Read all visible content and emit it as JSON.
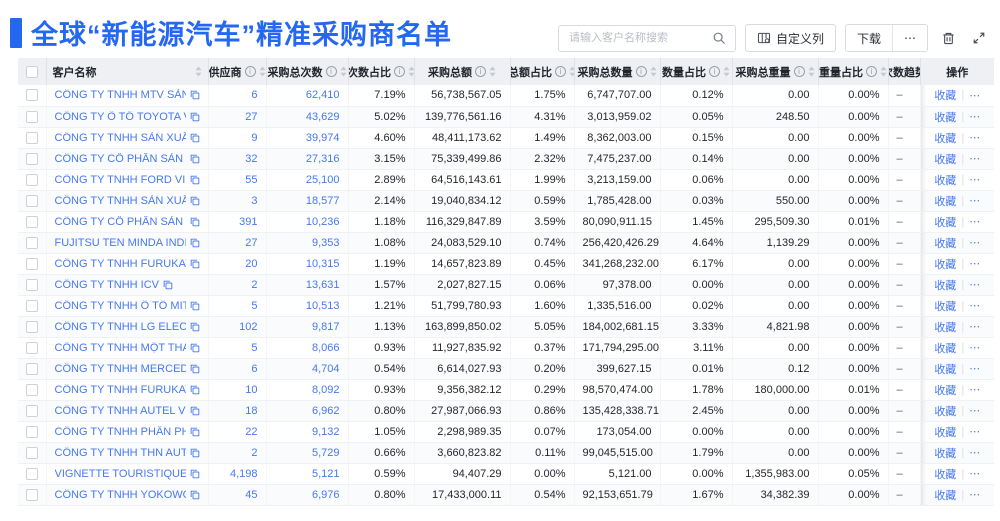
{
  "title": "全球“新能源汽车”精准采购商名单",
  "colors": {
    "accent": "#2468f2",
    "link": "#4678f2",
    "header_bg": "#eef0f4"
  },
  "icons": {
    "search": "magnifier",
    "customize": "column-settings",
    "more": "ellipsis",
    "trash": "trash-bin",
    "fullscreen": "expand-corners",
    "copy": "copy-squares",
    "sort": "sort-carets",
    "info": "info-circle"
  },
  "toolbar": {
    "search_placeholder": "请输入客户名称搜索",
    "customize_columns": "自定义列",
    "download": "下载",
    "more": "⋯"
  },
  "row_actions": {
    "favorite": "收藏",
    "separator": "|",
    "more": "⋯"
  },
  "table": {
    "columns": [
      {
        "key": "name",
        "label": "客户名称",
        "info": false,
        "sort": true,
        "align": "left"
      },
      {
        "key": "supplier",
        "label": "供应商",
        "info": true,
        "sort": true
      },
      {
        "key": "purchase_count",
        "label": "采购总次数",
        "info": true,
        "sort": true
      },
      {
        "key": "count_pct",
        "label": "次数占比",
        "info": true,
        "sort": true
      },
      {
        "key": "amount",
        "label": "采购总额",
        "info": true,
        "sort": true
      },
      {
        "key": "amount_pct",
        "label": "总额占比",
        "info": true,
        "sort": true
      },
      {
        "key": "quantity",
        "label": "采购总数量",
        "info": true,
        "sort": true
      },
      {
        "key": "quantity_pct",
        "label": "数量占比",
        "info": true,
        "sort": true
      },
      {
        "key": "weight",
        "label": "采购总重量",
        "info": true,
        "sort": true
      },
      {
        "key": "weight_pct",
        "label": "重量占比",
        "info": true,
        "sort": true
      },
      {
        "key": "trend",
        "label": "次数趋势",
        "info": false,
        "sort": false
      },
      {
        "key": "actions",
        "label": "操作",
        "info": false,
        "sort": false
      }
    ],
    "rows": [
      {
        "name": "CÔNG TY TNHH MTV SẢN XUẤ...",
        "supplier": "6",
        "purchase_count": "62,410",
        "count_pct": "7.19%",
        "amount": "56,738,567.05",
        "amount_pct": "1.75%",
        "quantity": "6,747,707.00",
        "quantity_pct": "0.12%",
        "weight": "0.00",
        "weight_pct": "0.00%",
        "trend": "–"
      },
      {
        "name": "CÔNG TY Ô TÔ TOYOTA VIỆT ...",
        "supplier": "27",
        "purchase_count": "43,629",
        "count_pct": "5.02%",
        "amount": "139,776,561.16",
        "amount_pct": "4.31%",
        "quantity": "3,013,959.02",
        "quantity_pct": "0.05%",
        "weight": "248.50",
        "weight_pct": "0.00%",
        "trend": "–"
      },
      {
        "name": "CÔNG TY TNHH SẢN XUẤT VÀ ...",
        "supplier": "9",
        "purchase_count": "39,974",
        "count_pct": "4.60%",
        "amount": "48,411,173.62",
        "amount_pct": "1.49%",
        "quantity": "8,362,003.00",
        "quantity_pct": "0.15%",
        "weight": "0.00",
        "weight_pct": "0.00%",
        "trend": "–"
      },
      {
        "name": "CÔNG TY CỔ PHẦN SẢN XUẤT...",
        "supplier": "32",
        "purchase_count": "27,316",
        "count_pct": "3.15%",
        "amount": "75,339,499.86",
        "amount_pct": "2.32%",
        "quantity": "7,475,237.00",
        "quantity_pct": "0.14%",
        "weight": "0.00",
        "weight_pct": "0.00%",
        "trend": "–"
      },
      {
        "name": "CÔNG TY TNHH FORD VIỆT NAM",
        "supplier": "55",
        "purchase_count": "25,100",
        "count_pct": "2.89%",
        "amount": "64,516,143.61",
        "amount_pct": "1.99%",
        "quantity": "3,213,159.00",
        "quantity_pct": "0.06%",
        "weight": "0.00",
        "weight_pct": "0.00%",
        "trend": "–"
      },
      {
        "name": "CÔNG TY TNHH SẢN XUẤT VÀ ...",
        "supplier": "3",
        "purchase_count": "18,577",
        "count_pct": "2.14%",
        "amount": "19,040,834.12",
        "amount_pct": "0.59%",
        "quantity": "1,785,428.00",
        "quantity_pct": "0.03%",
        "weight": "550.00",
        "weight_pct": "0.00%",
        "trend": "–"
      },
      {
        "name": "CÔNG TY CỔ PHẦN SẢN XUẤT...",
        "supplier": "391",
        "purchase_count": "10,236",
        "count_pct": "1.18%",
        "amount": "116,329,847.89",
        "amount_pct": "3.59%",
        "quantity": "80,090,911.15",
        "quantity_pct": "1.45%",
        "weight": "295,509.30",
        "weight_pct": "0.01%",
        "trend": "–"
      },
      {
        "name": "FUJITSU TEN MINDA INDIA PVT...",
        "supplier": "27",
        "purchase_count": "9,353",
        "count_pct": "1.08%",
        "amount": "24,083,529.10",
        "amount_pct": "0.74%",
        "quantity": "256,420,426.29",
        "quantity_pct": "4.64%",
        "weight": "1,139.29",
        "weight_pct": "0.00%",
        "trend": "–"
      },
      {
        "name": "CÔNG TY TNHH FURUKAWA A...",
        "supplier": "20",
        "purchase_count": "10,315",
        "count_pct": "1.19%",
        "amount": "14,657,823.89",
        "amount_pct": "0.45%",
        "quantity": "341,268,232.00",
        "quantity_pct": "6.17%",
        "weight": "0.00",
        "weight_pct": "0.00%",
        "trend": "–"
      },
      {
        "name": "CÔNG TY TNHH ICV",
        "supplier": "2",
        "purchase_count": "13,631",
        "count_pct": "1.57%",
        "amount": "2,027,827.15",
        "amount_pct": "0.06%",
        "quantity": "97,378.00",
        "quantity_pct": "0.00%",
        "weight": "0.00",
        "weight_pct": "0.00%",
        "trend": "–"
      },
      {
        "name": "CÔNG TY TNHH Ô TÔ MITSUBI...",
        "supplier": "5",
        "purchase_count": "10,513",
        "count_pct": "1.21%",
        "amount": "51,799,780.93",
        "amount_pct": "1.60%",
        "quantity": "1,335,516.00",
        "quantity_pct": "0.02%",
        "weight": "0.00",
        "weight_pct": "0.00%",
        "trend": "–"
      },
      {
        "name": "CÔNG TY TNHH LG ELECTRON...",
        "supplier": "102",
        "purchase_count": "9,817",
        "count_pct": "1.13%",
        "amount": "163,899,850.02",
        "amount_pct": "5.05%",
        "quantity": "184,002,681.15",
        "quantity_pct": "3.33%",
        "weight": "4,821.98",
        "weight_pct": "0.00%",
        "trend": "–"
      },
      {
        "name": "CÔNG TY TNHH MỘT THÀNH V...",
        "supplier": "5",
        "purchase_count": "8,066",
        "count_pct": "0.93%",
        "amount": "11,927,835.92",
        "amount_pct": "0.37%",
        "quantity": "171,794,295.00",
        "quantity_pct": "3.11%",
        "weight": "0.00",
        "weight_pct": "0.00%",
        "trend": "–"
      },
      {
        "name": "CÔNG TY TNHH MERCEDES-B...",
        "supplier": "6",
        "purchase_count": "4,704",
        "count_pct": "0.54%",
        "amount": "6,614,027.93",
        "amount_pct": "0.20%",
        "quantity": "399,627.15",
        "quantity_pct": "0.01%",
        "weight": "0.12",
        "weight_pct": "0.00%",
        "trend": "–"
      },
      {
        "name": "CÔNG TY TNHH FURUKAWA A...",
        "supplier": "10",
        "purchase_count": "8,092",
        "count_pct": "0.93%",
        "amount": "9,356,382.12",
        "amount_pct": "0.29%",
        "quantity": "98,570,474.00",
        "quantity_pct": "1.78%",
        "weight": "180,000.00",
        "weight_pct": "0.01%",
        "trend": "–"
      },
      {
        "name": "CÔNG TY TNHH AUTEL VIỆT N...",
        "supplier": "18",
        "purchase_count": "6,962",
        "count_pct": "0.80%",
        "amount": "27,987,066.93",
        "amount_pct": "0.86%",
        "quantity": "135,428,338.71",
        "quantity_pct": "2.45%",
        "weight": "0.00",
        "weight_pct": "0.00%",
        "trend": "–"
      },
      {
        "name": "CÔNG TY TNHH PHÂN PHỐI T...",
        "supplier": "22",
        "purchase_count": "9,132",
        "count_pct": "1.05%",
        "amount": "2,298,989.35",
        "amount_pct": "0.07%",
        "quantity": "173,054.00",
        "quantity_pct": "0.00%",
        "weight": "0.00",
        "weight_pct": "0.00%",
        "trend": "–"
      },
      {
        "name": "CÔNG TY TNHH THN AUTOPAR...",
        "supplier": "2",
        "purchase_count": "5,729",
        "count_pct": "0.66%",
        "amount": "3,660,823.82",
        "amount_pct": "0.11%",
        "quantity": "99,045,515.00",
        "quantity_pct": "1.79%",
        "weight": "0.00",
        "weight_pct": "0.00%",
        "trend": "–"
      },
      {
        "name": "VIGNETTE TOURISTIQUE G UNI...",
        "supplier": "4,198",
        "purchase_count": "5,121",
        "count_pct": "0.59%",
        "amount": "94,407.29",
        "amount_pct": "0.00%",
        "quantity": "5,121.00",
        "quantity_pct": "0.00%",
        "weight": "1,355,983.00",
        "weight_pct": "0.05%",
        "trend": "–"
      },
      {
        "name": "CÔNG TY TNHH YOKOWO VIỆT...",
        "supplier": "45",
        "purchase_count": "6,976",
        "count_pct": "0.80%",
        "amount": "17,433,000.11",
        "amount_pct": "0.54%",
        "quantity": "92,153,651.79",
        "quantity_pct": "1.67%",
        "weight": "34,382.39",
        "weight_pct": "0.00%",
        "trend": "–"
      }
    ]
  }
}
